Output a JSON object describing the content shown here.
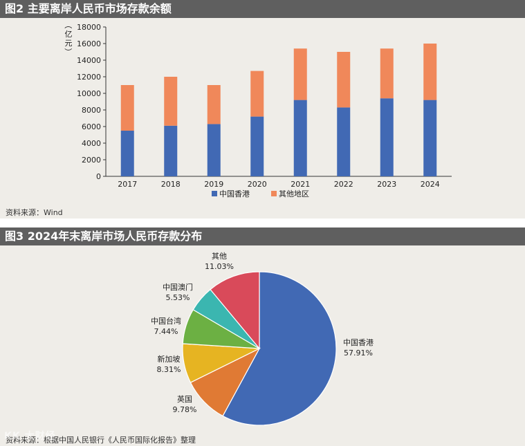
{
  "figure2": {
    "title": "图2  主要离岸人民币市场存款余额",
    "source": "资料来源：Wind",
    "chart_data": {
      "type": "bar",
      "stacked": true,
      "categories": [
        "2017",
        "2018",
        "2019",
        "2020",
        "2021",
        "2022",
        "2023",
        "2024"
      ],
      "ylabel": "（亿元）",
      "ylim": [
        0,
        18000
      ],
      "yticks": [
        0,
        2000,
        4000,
        6000,
        8000,
        10000,
        12000,
        14000,
        16000,
        18000
      ],
      "series": [
        {
          "name": "中国香港",
          "color": "#4169b4",
          "values": [
            5500,
            6100,
            6300,
            7200,
            9200,
            8300,
            9400,
            9200
          ]
        },
        {
          "name": "其他地区",
          "color": "#f0885a",
          "values": [
            5500,
            5900,
            4700,
            5500,
            6200,
            6700,
            6000,
            6800
          ]
        }
      ],
      "legend_position": "bottom-center",
      "grid": false
    }
  },
  "figure3": {
    "title": "图3  2024年末离岸市场人民币存款分布",
    "source": "资料来源：根据中国人民银行《人民币国际化报告》整理",
    "chart_data": {
      "type": "pie",
      "slices": [
        {
          "label": "中国香港",
          "value": 57.91,
          "display": "57.91%",
          "color": "#4169b4"
        },
        {
          "label": "英国",
          "value": 9.78,
          "display": "9.78%",
          "color": "#e07a34"
        },
        {
          "label": "新加坡",
          "value": 8.31,
          "display": "8.31%",
          "color": "#e6b422"
        },
        {
          "label": "中国台湾",
          "value": 7.44,
          "display": "7.44%",
          "color": "#6cb043"
        },
        {
          "label": "中国澳门",
          "value": 5.53,
          "display": "5.53%",
          "color": "#3bb6b0"
        },
        {
          "label": "其他",
          "value": 11.03,
          "display": "11.03%",
          "color": "#d94a5a"
        }
      ]
    }
  },
  "watermark": "KK 大财经"
}
